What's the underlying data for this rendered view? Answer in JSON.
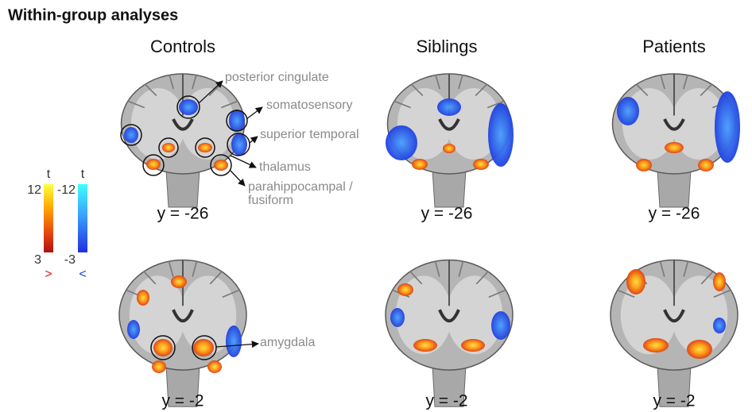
{
  "header": {
    "title": "Within-group analyses"
  },
  "columns": [
    "Controls",
    "Siblings",
    "Patients"
  ],
  "rows": [
    {
      "slice_label": "y = -26"
    },
    {
      "slice_label": "y = -2"
    }
  ],
  "annotations": {
    "posterior_cingulate": "posterior cingulate",
    "somatosensory": "somatosensory",
    "superior_temporal": "superior temporal",
    "thalamus": "thalamus",
    "parahippocampal": "parahippocampal /",
    "fusiform": "fusiform",
    "amygdala": "amygdala"
  },
  "colorbars": {
    "positive": {
      "title": "t",
      "max": "12",
      "min": "3",
      "direction": ">"
    },
    "negative": {
      "title": "t",
      "max": "-12",
      "min": "-3",
      "direction": "<"
    }
  }
}
